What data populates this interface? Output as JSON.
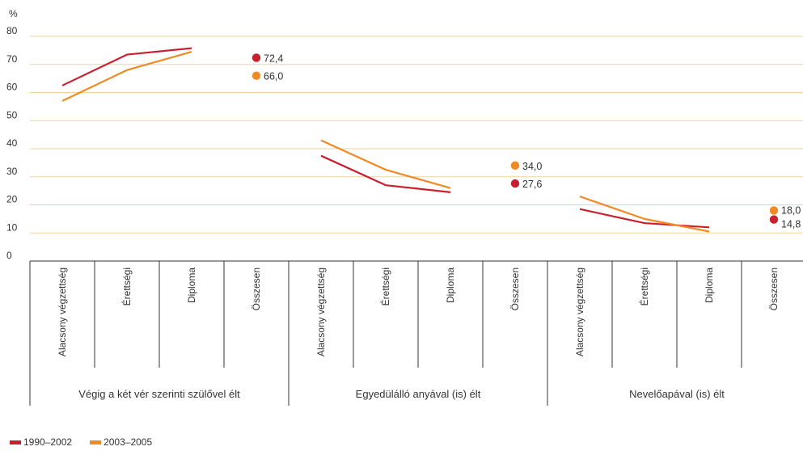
{
  "chart_data": {
    "type": "line",
    "unit_label": "%",
    "ylim": [
      0,
      80
    ],
    "yticks": [
      0,
      10,
      20,
      30,
      40,
      50,
      60,
      70,
      80
    ],
    "grid": true,
    "categories": [
      "Alacsony végzettség",
      "Érettségi",
      "Diploma",
      "Összesen"
    ],
    "groups": [
      {
        "label": "Végig a két vér szerinti szülővel élt",
        "series": [
          {
            "name": "1990–2002",
            "values": [
              62.5,
              73.5,
              75.8
            ],
            "total": 72.4,
            "total_label": "72,4"
          },
          {
            "name": "2003–2005",
            "values": [
              57.0,
              68.0,
              74.5
            ],
            "total": 66.0,
            "total_label": "66,0"
          }
        ]
      },
      {
        "label": "Egyedülálló anyával (is) élt",
        "series": [
          {
            "name": "1990–2002",
            "values": [
              37.5,
              27.0,
              24.5
            ],
            "total": 27.6,
            "total_label": "27,6"
          },
          {
            "name": "2003–2005",
            "values": [
              43.0,
              32.5,
              26.0
            ],
            "total": 34.0,
            "total_label": "34,0"
          }
        ]
      },
      {
        "label": "Nevelőapával (is) élt",
        "series": [
          {
            "name": "1990–2002",
            "values": [
              18.5,
              13.5,
              12.0
            ],
            "total": 14.8,
            "total_label": "14,8"
          },
          {
            "name": "2003–2005",
            "values": [
              23.0,
              15.0,
              10.5
            ],
            "total": 18.0,
            "total_label": "18,0"
          }
        ]
      }
    ],
    "legend": [
      {
        "name": "1990–2002",
        "color": "#c8202f"
      },
      {
        "name": "2003–2005",
        "color": "#f08a24"
      }
    ],
    "legend_position": "bottom-left"
  },
  "colors": {
    "series_1990": "#c8202f",
    "series_2003": "#f08a24",
    "grid": "#f2d39a",
    "axis": "#333333"
  }
}
